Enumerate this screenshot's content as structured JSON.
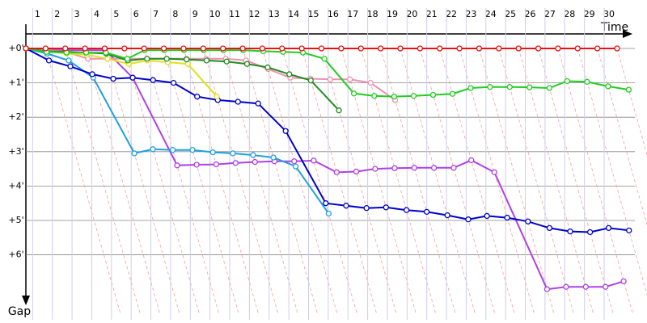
{
  "chart_data": {
    "type": "line",
    "x_label": "Time",
    "y_label": "Gap",
    "x": [
      0,
      1,
      2,
      3,
      4,
      5,
      6,
      7,
      8,
      9,
      10,
      11,
      12,
      13,
      14,
      15,
      16,
      17,
      18,
      19,
      20,
      21,
      22,
      23,
      24,
      25,
      26,
      27,
      28,
      29,
      30
    ],
    "xlim": [
      0,
      30
    ],
    "xticks": [
      1,
      2,
      3,
      4,
      5,
      6,
      7,
      8,
      9,
      10,
      11,
      12,
      13,
      14,
      15,
      16,
      17,
      18,
      19,
      20,
      21,
      22,
      23,
      24,
      25,
      26,
      27,
      28,
      29,
      30
    ],
    "ylim": [
      0,
      7.7
    ],
    "y_inverted": true,
    "yticks": [
      {
        "value": 0,
        "label": "+0'"
      },
      {
        "value": 1,
        "label": "+1'"
      },
      {
        "value": 2,
        "label": "+2'"
      },
      {
        "value": 3,
        "label": "+3'"
      },
      {
        "value": 4,
        "label": "+4'"
      },
      {
        "value": 5,
        "label": "+5'"
      },
      {
        "value": 6,
        "label": "+6'"
      }
    ],
    "grid": true,
    "series": [
      {
        "color": "#b040e8",
        "values": [
          0,
          0.05,
          0.05,
          0.05,
          0.05,
          0.85,
          3.4,
          3.38,
          3.37,
          3.33,
          3.3,
          3.28,
          3.28,
          3.26,
          3.6,
          3.58,
          3.5,
          3.48,
          3.47,
          3.47,
          3.47,
          3.25,
          3.6,
          7.0,
          6.93,
          6.93,
          6.93,
          6.77,
          null,
          null,
          null
        ]
      },
      {
        "color": "#20a0e0",
        "values": [
          0,
          0.15,
          0.35,
          0.85,
          3.05,
          2.93,
          2.95,
          2.95,
          3.02,
          3.05,
          3.1,
          3.17,
          3.43,
          4.8,
          null,
          null,
          null,
          null,
          null,
          null,
          null,
          null,
          null,
          null,
          null,
          null,
          null,
          null,
          null,
          null,
          null
        ]
      },
      {
        "color": "#0000cc",
        "values": [
          0,
          0.35,
          0.52,
          0.75,
          0.88,
          0.85,
          0.92,
          1.0,
          1.4,
          1.5,
          1.55,
          1.6,
          2.4,
          4.5,
          4.57,
          4.64,
          4.62,
          4.7,
          4.75,
          4.85,
          4.97,
          4.87,
          4.92,
          5.03,
          5.22,
          5.32,
          5.34,
          5.22,
          5.29,
          null,
          null
        ]
      },
      {
        "color": "#f090b0",
        "values": [
          0,
          0.05,
          0.1,
          0.3,
          0.3,
          0.3,
          0.3,
          0.3,
          0.3,
          0.3,
          0.3,
          0.35,
          0.6,
          0.85,
          0.88,
          0.9,
          0.9,
          1.0,
          1.5,
          null,
          null,
          null,
          null,
          null,
          null,
          null,
          null,
          null,
          null,
          null,
          null
        ]
      },
      {
        "color": "#e0e020",
        "values": [
          0,
          0.08,
          0.15,
          0.18,
          0.3,
          0.45,
          0.35,
          0.4,
          0.45,
          1.4,
          null,
          null,
          null,
          null,
          null,
          null,
          null,
          null,
          null,
          null,
          null,
          null,
          null,
          null,
          null,
          null,
          null,
          null,
          null,
          null,
          null
        ]
      },
      {
        "color": "#228b22",
        "values": [
          0,
          0.08,
          0.1,
          0.12,
          0.15,
          0.35,
          0.3,
          0.3,
          0.32,
          0.35,
          0.38,
          0.45,
          0.55,
          0.75,
          0.93,
          1.8,
          null,
          null,
          null,
          null,
          null,
          null,
          null,
          null,
          null,
          null,
          null,
          null,
          null,
          null,
          null
        ]
      },
      {
        "color": "#22cc22",
        "values": [
          0,
          0.1,
          0.12,
          0.12,
          0.12,
          0.3,
          0.05,
          0.05,
          0.05,
          0.05,
          0.05,
          0.05,
          0.08,
          0.1,
          0.12,
          0.3,
          1.31,
          1.38,
          1.4,
          1.38,
          1.35,
          1.32,
          1.15,
          1.12,
          1.12,
          1.13,
          1.15,
          0.95,
          0.97,
          1.1,
          1.2
        ]
      },
      {
        "color": "#ee1111",
        "values": [
          0,
          0,
          0,
          0,
          0,
          0,
          0,
          0,
          0,
          0,
          0,
          0,
          0,
          0,
          0,
          0,
          0,
          0,
          0,
          0,
          0,
          0,
          0,
          0,
          0,
          0,
          0,
          0,
          0,
          0,
          0
        ]
      }
    ]
  }
}
